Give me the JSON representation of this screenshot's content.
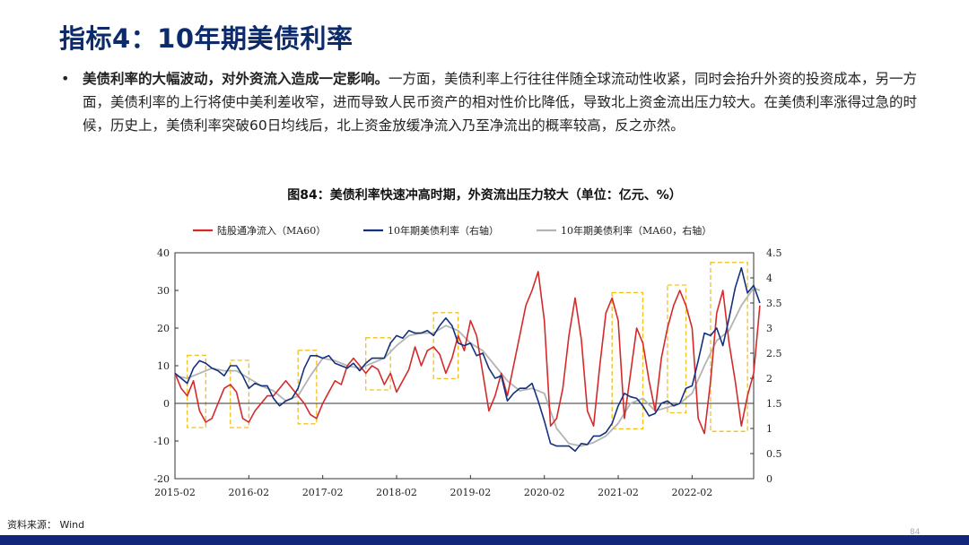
{
  "slide": {
    "title": "指标4：10年期美债利率",
    "bullet_bold": "美债利率的大幅波动，对外资流入造成一定影响。",
    "bullet_rest": "一方面，美债利率上行往往伴随全球流动性收紧，同时会抬升外资的投资成本，另一方面，美债利率的上行将使中美利差收窄，进而导致人民币资产的相对性价比降低，导致北上资金流出压力较大。在美债利率涨得过急的时候，历史上，美债利率突破60日均线后，北上资金放缓净流入乃至净流出的概率较高，反之亦然。",
    "figure_caption": "图84：美债利率快速冲高时期，外资流出压力较大（单位：亿元、%）",
    "source": "资料来源： Wind",
    "page_number": "84"
  },
  "colors": {
    "red_series": "#d42a2a",
    "navy_series": "#14317e",
    "gray_series": "#b4b4b4",
    "highlight_box": "#f0c020",
    "bottom_bar": "#13277a",
    "title": "#0d2b6b"
  },
  "chart_data": {
    "type": "line",
    "title": "图84：美债利率快速冲高时期，外资流出压力较大（单位：亿元、%）",
    "x_ticks": [
      "2015-02",
      "2016-02",
      "2017-02",
      "2018-02",
      "2019-02",
      "2020-02",
      "2021-02",
      "2022-02"
    ],
    "x_range": [
      "2015-02",
      "2022-12"
    ],
    "y_left": {
      "ticks": [
        "40",
        "30",
        "20",
        "10",
        "0",
        "-10",
        "-20"
      ],
      "range": [
        -20,
        40
      ]
    },
    "y_right": {
      "ticks": [
        "4.5",
        "4",
        "3.5",
        "3",
        "2.5",
        "2",
        "1.5",
        "1",
        "0.5",
        "0"
      ],
      "range": [
        0,
        4.5
      ]
    },
    "legend_position": "top",
    "series": [
      {
        "name": "陆股通净流入（MA60）",
        "axis": "left",
        "color": "#d42a2a",
        "points": [
          [
            "2015-02",
            8
          ],
          [
            "2015-03",
            4
          ],
          [
            "2015-04",
            2
          ],
          [
            "2015-05",
            6
          ],
          [
            "2015-06",
            -2
          ],
          [
            "2015-07",
            -5
          ],
          [
            "2015-08",
            -4
          ],
          [
            "2015-09",
            0
          ],
          [
            "2015-10",
            4
          ],
          [
            "2015-11",
            5
          ],
          [
            "2015-12",
            3
          ],
          [
            "2016-01",
            -4
          ],
          [
            "2016-02",
            -5
          ],
          [
            "2016-03",
            -2
          ],
          [
            "2016-04",
            0
          ],
          [
            "2016-05",
            2
          ],
          [
            "2016-06",
            2
          ],
          [
            "2016-07",
            4
          ],
          [
            "2016-08",
            6
          ],
          [
            "2016-09",
            4
          ],
          [
            "2016-10",
            2
          ],
          [
            "2016-11",
            0
          ],
          [
            "2016-12",
            -3
          ],
          [
            "2017-01",
            -4
          ],
          [
            "2017-02",
            0
          ],
          [
            "2017-03",
            3
          ],
          [
            "2017-04",
            6
          ],
          [
            "2017-05",
            5
          ],
          [
            "2017-06",
            10
          ],
          [
            "2017-07",
            12
          ],
          [
            "2017-08",
            10
          ],
          [
            "2017-09",
            8
          ],
          [
            "2017-10",
            10
          ],
          [
            "2017-11",
            9
          ],
          [
            "2017-12",
            5
          ],
          [
            "2018-01",
            8
          ],
          [
            "2018-02",
            3
          ],
          [
            "2018-03",
            6
          ],
          [
            "2018-04",
            9
          ],
          [
            "2018-05",
            15
          ],
          [
            "2018-06",
            10
          ],
          [
            "2018-07",
            14
          ],
          [
            "2018-08",
            15
          ],
          [
            "2018-09",
            13
          ],
          [
            "2018-10",
            8
          ],
          [
            "2018-11",
            12
          ],
          [
            "2018-12",
            18
          ],
          [
            "2019-01",
            14
          ],
          [
            "2019-02",
            22
          ],
          [
            "2019-03",
            18
          ],
          [
            "2019-04",
            8
          ],
          [
            "2019-05",
            -2
          ],
          [
            "2019-06",
            2
          ],
          [
            "2019-07",
            8
          ],
          [
            "2019-08",
            2
          ],
          [
            "2019-09",
            10
          ],
          [
            "2019-10",
            18
          ],
          [
            "2019-11",
            26
          ],
          [
            "2019-12",
            30
          ],
          [
            "2020-01",
            35
          ],
          [
            "2020-02",
            22
          ],
          [
            "2020-03",
            -6
          ],
          [
            "2020-04",
            -4
          ],
          [
            "2020-05",
            4
          ],
          [
            "2020-06",
            18
          ],
          [
            "2020-07",
            28
          ],
          [
            "2020-08",
            17
          ],
          [
            "2020-09",
            -2
          ],
          [
            "2020-10",
            -6
          ],
          [
            "2020-11",
            10
          ],
          [
            "2020-12",
            24
          ],
          [
            "2021-01",
            28
          ],
          [
            "2021-02",
            22
          ],
          [
            "2021-03",
            -4
          ],
          [
            "2021-04",
            8
          ],
          [
            "2021-05",
            20
          ],
          [
            "2021-06",
            16
          ],
          [
            "2021-07",
            6
          ],
          [
            "2021-08",
            -2
          ],
          [
            "2021-09",
            12
          ],
          [
            "2021-10",
            20
          ],
          [
            "2021-11",
            26
          ],
          [
            "2021-12",
            30
          ],
          [
            "2022-01",
            26
          ],
          [
            "2022-02",
            20
          ],
          [
            "2022-03",
            -4
          ],
          [
            "2022-04",
            -8
          ],
          [
            "2022-05",
            6
          ],
          [
            "2022-06",
            24
          ],
          [
            "2022-07",
            30
          ],
          [
            "2022-08",
            16
          ],
          [
            "2022-09",
            6
          ],
          [
            "2022-10",
            -6
          ],
          [
            "2022-11",
            2
          ],
          [
            "2022-12",
            8
          ],
          [
            "2023-01",
            26
          ]
        ]
      },
      {
        "name": "10年期美债利率（右轴）",
        "axis": "right",
        "color": "#14317e",
        "points": [
          [
            "2015-02",
            2.1
          ],
          [
            "2015-03",
            2.0
          ],
          [
            "2015-04",
            1.9
          ],
          [
            "2015-05",
            2.2
          ],
          [
            "2015-06",
            2.35
          ],
          [
            "2015-07",
            2.3
          ],
          [
            "2015-08",
            2.2
          ],
          [
            "2015-09",
            2.15
          ],
          [
            "2015-10",
            2.05
          ],
          [
            "2015-11",
            2.25
          ],
          [
            "2015-12",
            2.25
          ],
          [
            "2016-01",
            2.05
          ],
          [
            "2016-02",
            1.8
          ],
          [
            "2016-03",
            1.9
          ],
          [
            "2016-04",
            1.85
          ],
          [
            "2016-05",
            1.85
          ],
          [
            "2016-06",
            1.6
          ],
          [
            "2016-07",
            1.45
          ],
          [
            "2016-08",
            1.55
          ],
          [
            "2016-09",
            1.6
          ],
          [
            "2016-10",
            1.8
          ],
          [
            "2016-11",
            2.2
          ],
          [
            "2016-12",
            2.45
          ],
          [
            "2017-01",
            2.45
          ],
          [
            "2017-02",
            2.4
          ],
          [
            "2017-03",
            2.45
          ],
          [
            "2017-04",
            2.3
          ],
          [
            "2017-05",
            2.25
          ],
          [
            "2017-06",
            2.2
          ],
          [
            "2017-07",
            2.3
          ],
          [
            "2017-08",
            2.15
          ],
          [
            "2017-09",
            2.3
          ],
          [
            "2017-10",
            2.4
          ],
          [
            "2017-11",
            2.4
          ],
          [
            "2017-12",
            2.4
          ],
          [
            "2018-01",
            2.7
          ],
          [
            "2018-02",
            2.85
          ],
          [
            "2018-03",
            2.8
          ],
          [
            "2018-04",
            2.95
          ],
          [
            "2018-05",
            2.9
          ],
          [
            "2018-06",
            2.9
          ],
          [
            "2018-07",
            2.95
          ],
          [
            "2018-08",
            2.85
          ],
          [
            "2018-09",
            3.05
          ],
          [
            "2018-10",
            3.2
          ],
          [
            "2018-11",
            3.05
          ],
          [
            "2018-12",
            2.7
          ],
          [
            "2019-01",
            2.65
          ],
          [
            "2019-02",
            2.7
          ],
          [
            "2019-03",
            2.45
          ],
          [
            "2019-04",
            2.5
          ],
          [
            "2019-05",
            2.2
          ],
          [
            "2019-06",
            2.0
          ],
          [
            "2019-07",
            2.05
          ],
          [
            "2019-08",
            1.55
          ],
          [
            "2019-09",
            1.7
          ],
          [
            "2019-10",
            1.8
          ],
          [
            "2019-11",
            1.8
          ],
          [
            "2019-12",
            1.9
          ],
          [
            "2020-01",
            1.55
          ],
          [
            "2020-02",
            1.15
          ],
          [
            "2020-03",
            0.7
          ],
          [
            "2020-04",
            0.65
          ],
          [
            "2020-05",
            0.65
          ],
          [
            "2020-06",
            0.65
          ],
          [
            "2020-07",
            0.55
          ],
          [
            "2020-08",
            0.7
          ],
          [
            "2020-09",
            0.68
          ],
          [
            "2020-10",
            0.85
          ],
          [
            "2020-11",
            0.85
          ],
          [
            "2020-12",
            0.92
          ],
          [
            "2021-01",
            1.1
          ],
          [
            "2021-02",
            1.45
          ],
          [
            "2021-03",
            1.7
          ],
          [
            "2021-04",
            1.63
          ],
          [
            "2021-05",
            1.6
          ],
          [
            "2021-06",
            1.45
          ],
          [
            "2021-07",
            1.25
          ],
          [
            "2021-08",
            1.3
          ],
          [
            "2021-09",
            1.5
          ],
          [
            "2021-10",
            1.55
          ],
          [
            "2021-11",
            1.45
          ],
          [
            "2021-12",
            1.5
          ],
          [
            "2022-01",
            1.8
          ],
          [
            "2022-02",
            1.85
          ],
          [
            "2022-03",
            2.35
          ],
          [
            "2022-04",
            2.9
          ],
          [
            "2022-05",
            2.85
          ],
          [
            "2022-06",
            3.0
          ],
          [
            "2022-07",
            2.65
          ],
          [
            "2022-08",
            3.2
          ],
          [
            "2022-09",
            3.8
          ],
          [
            "2022-10",
            4.2
          ],
          [
            "2022-11",
            3.7
          ],
          [
            "2022-12",
            3.85
          ],
          [
            "2023-01",
            3.5
          ]
        ]
      },
      {
        "name": "10年期美债利率（MA60，右轴）",
        "axis": "right",
        "color": "#b4b4b4",
        "points": [
          [
            "2015-02",
            2.05
          ],
          [
            "2015-04",
            2.0
          ],
          [
            "2015-06",
            2.1
          ],
          [
            "2015-08",
            2.2
          ],
          [
            "2015-10",
            2.15
          ],
          [
            "2015-12",
            2.15
          ],
          [
            "2016-02",
            2.0
          ],
          [
            "2016-04",
            1.85
          ],
          [
            "2016-06",
            1.75
          ],
          [
            "2016-08",
            1.55
          ],
          [
            "2016-10",
            1.65
          ],
          [
            "2016-12",
            2.05
          ],
          [
            "2017-02",
            2.4
          ],
          [
            "2017-04",
            2.35
          ],
          [
            "2017-06",
            2.25
          ],
          [
            "2017-08",
            2.2
          ],
          [
            "2017-10",
            2.3
          ],
          [
            "2017-12",
            2.4
          ],
          [
            "2018-02",
            2.65
          ],
          [
            "2018-04",
            2.85
          ],
          [
            "2018-06",
            2.9
          ],
          [
            "2018-08",
            2.9
          ],
          [
            "2018-10",
            3.05
          ],
          [
            "2018-12",
            2.95
          ],
          [
            "2019-02",
            2.7
          ],
          [
            "2019-04",
            2.55
          ],
          [
            "2019-06",
            2.25
          ],
          [
            "2019-08",
            1.95
          ],
          [
            "2019-10",
            1.75
          ],
          [
            "2019-12",
            1.8
          ],
          [
            "2020-02",
            1.7
          ],
          [
            "2020-04",
            1.0
          ],
          [
            "2020-06",
            0.7
          ],
          [
            "2020-08",
            0.65
          ],
          [
            "2020-10",
            0.72
          ],
          [
            "2020-12",
            0.85
          ],
          [
            "2021-02",
            1.1
          ],
          [
            "2021-04",
            1.5
          ],
          [
            "2021-06",
            1.6
          ],
          [
            "2021-08",
            1.35
          ],
          [
            "2021-10",
            1.42
          ],
          [
            "2021-12",
            1.5
          ],
          [
            "2022-02",
            1.7
          ],
          [
            "2022-04",
            2.25
          ],
          [
            "2022-06",
            2.75
          ],
          [
            "2022-08",
            2.95
          ],
          [
            "2022-10",
            3.45
          ],
          [
            "2022-12",
            3.8
          ],
          [
            "2023-01",
            3.75
          ]
        ]
      }
    ],
    "highlight_periods": [
      [
        "2015-04",
        "2015-07"
      ],
      [
        "2015-11",
        "2016-02"
      ],
      [
        "2016-10",
        "2017-01"
      ],
      [
        "2017-09",
        "2018-01"
      ],
      [
        "2018-08",
        "2018-12"
      ],
      [
        "2021-01",
        "2021-06"
      ],
      [
        "2021-10",
        "2022-01"
      ],
      [
        "2022-05",
        "2022-11"
      ]
    ]
  }
}
